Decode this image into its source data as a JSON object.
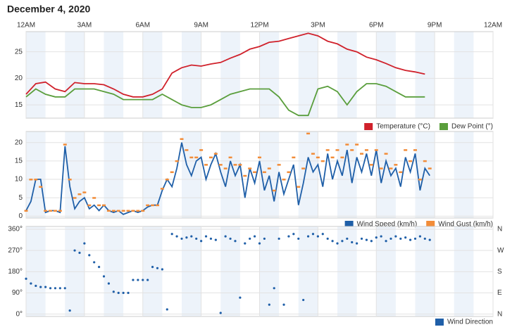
{
  "chart_data": [
    {
      "type": "line",
      "title": "December 4, 2020",
      "xlim": [
        0,
        24
      ],
      "xticks": [
        {
          "value": 0,
          "label": "12AM"
        },
        {
          "value": 3,
          "label": "3AM"
        },
        {
          "value": 6,
          "label": "6AM"
        },
        {
          "value": 9,
          "label": "9AM"
        },
        {
          "value": 12,
          "label": "12PM"
        },
        {
          "value": 15,
          "label": "3PM"
        },
        {
          "value": 18,
          "label": "6PM"
        },
        {
          "value": 21,
          "label": "9PM"
        },
        {
          "value": 24,
          "label": "12AM"
        }
      ],
      "ylim": [
        12.5,
        28.8
      ],
      "yticks": [
        15,
        20,
        25
      ],
      "x": [
        0,
        0.5,
        1,
        1.5,
        2,
        2.5,
        3,
        3.5,
        4,
        4.5,
        5,
        5.5,
        6,
        6.5,
        7,
        7.5,
        8,
        8.5,
        9,
        9.5,
        10,
        10.5,
        11,
        11.5,
        12,
        12.5,
        13,
        13.5,
        14,
        14.5,
        15,
        15.5,
        16,
        16.5,
        17,
        17.5,
        18,
        18.5,
        19,
        19.5,
        20,
        20.5
      ],
      "series": [
        {
          "name": "Temperature (°C)",
          "color": "#d0212b",
          "values": [
            17,
            19,
            19.3,
            18,
            17.5,
            19.2,
            19,
            19,
            18.8,
            18,
            17,
            16.5,
            16.5,
            17,
            18,
            21,
            22,
            22.5,
            22.3,
            22.7,
            23,
            23.8,
            24.5,
            25.5,
            26,
            26.8,
            27,
            27.5,
            28,
            28.5,
            28,
            27,
            26.5,
            25.5,
            25,
            24,
            23.5,
            22.8,
            22,
            21.5,
            21.2,
            20.8
          ]
        },
        {
          "name": "Dew Point (°)",
          "color": "#5a9e3c",
          "values": [
            16.5,
            18,
            17,
            16.5,
            16.5,
            18,
            18,
            18,
            17.5,
            17,
            16,
            16,
            16,
            16,
            17,
            16,
            15,
            14.5,
            14.5,
            15,
            16,
            17,
            17.5,
            18,
            18,
            18,
            16.5,
            14,
            13,
            13,
            18,
            18.5,
            17.5,
            15,
            17.5,
            19,
            19,
            18.5,
            17.5,
            16.5,
            16.5,
            16.5
          ]
        }
      ]
    },
    {
      "type": "line",
      "ylim": [
        -0.5,
        23
      ],
      "yticks": [
        0,
        5,
        10,
        15,
        20
      ],
      "x": [
        0,
        0.25,
        0.5,
        0.75,
        1,
        1.25,
        1.5,
        1.75,
        2,
        2.25,
        2.5,
        2.75,
        3,
        3.25,
        3.5,
        3.75,
        4,
        4.25,
        4.5,
        4.75,
        5,
        5.25,
        5.5,
        5.75,
        6,
        6.25,
        6.5,
        6.75,
        7,
        7.25,
        7.5,
        7.75,
        8,
        8.25,
        8.5,
        8.75,
        9,
        9.25,
        9.5,
        9.75,
        10,
        10.25,
        10.5,
        10.75,
        11,
        11.25,
        11.5,
        11.75,
        12,
        12.25,
        12.5,
        12.75,
        13,
        13.25,
        13.5,
        13.75,
        14,
        14.25,
        14.5,
        14.75,
        15,
        15.25,
        15.5,
        15.75,
        16,
        16.25,
        16.5,
        16.75,
        17,
        17.25,
        17.5,
        17.75,
        18,
        18.25,
        18.5,
        18.75,
        19,
        19.25,
        19.5,
        19.75,
        20,
        20.25,
        20.5,
        20.75
      ],
      "series": [
        {
          "name": "Wind Speed (km/h)",
          "color": "#1f5fa8",
          "values": [
            1.5,
            4,
            10,
            10,
            1,
            1.5,
            1.5,
            1,
            19,
            8,
            2,
            4,
            5,
            2,
            3,
            1.5,
            3,
            1.5,
            1,
            1.5,
            0.5,
            1,
            1.5,
            1,
            1.5,
            2.5,
            3,
            3,
            7,
            10,
            8,
            13,
            20,
            14,
            11,
            15,
            16,
            10,
            14,
            17,
            12,
            8,
            15,
            11,
            14,
            5,
            13,
            9,
            15,
            7,
            11,
            4,
            12,
            6,
            10,
            14,
            3,
            9,
            16,
            12,
            14,
            8,
            17,
            10,
            15,
            11,
            18,
            9,
            16,
            12,
            17,
            11,
            18,
            9,
            15,
            11,
            13,
            8,
            16,
            12,
            17,
            7,
            13,
            11
          ]
        },
        {
          "name": "Wind Gust (km/h)",
          "color": "#f28c38",
          "mode": "markers",
          "values": [
            1.5,
            10,
            10,
            8,
            1.5,
            1.5,
            1.5,
            1.5,
            19.5,
            10,
            5,
            6,
            6.5,
            3,
            5,
            3,
            3,
            1.5,
            1.5,
            1.5,
            1.5,
            1.5,
            1.5,
            1.5,
            1.5,
            3,
            3,
            3,
            7.5,
            10,
            12,
            15,
            21,
            18,
            16,
            16,
            18,
            14,
            16,
            17,
            14,
            13,
            16,
            14,
            14,
            11,
            13,
            12,
            16,
            12,
            13,
            7,
            14,
            10,
            12,
            16,
            8,
            13,
            22.5,
            17,
            16,
            15,
            18,
            16,
            18,
            16,
            19.5,
            18,
            19.5,
            17,
            18,
            14,
            18,
            13,
            17,
            13,
            14,
            12,
            18,
            15,
            18,
            10,
            15,
            13
          ]
        }
      ]
    },
    {
      "type": "scatter",
      "ylim": [
        -10,
        372
      ],
      "yticks": [
        {
          "value": 0,
          "label": "0°"
        },
        {
          "value": 90,
          "label": "90°"
        },
        {
          "value": 180,
          "label": "180°"
        },
        {
          "value": 270,
          "label": "270°"
        },
        {
          "value": 360,
          "label": "360°"
        }
      ],
      "y2lim": [
        -10,
        372
      ],
      "y2ticks": [
        {
          "value": 0,
          "label": "N"
        },
        {
          "value": 90,
          "label": "E"
        },
        {
          "value": 180,
          "label": "S"
        },
        {
          "value": 270,
          "label": "W"
        },
        {
          "value": 360,
          "label": "N"
        }
      ],
      "x": [
        0,
        0.25,
        0.5,
        0.75,
        1,
        1.25,
        1.5,
        1.75,
        2,
        2.25,
        2.5,
        2.75,
        3,
        3.25,
        3.5,
        3.75,
        4,
        4.25,
        4.5,
        4.75,
        5,
        5.25,
        5.5,
        5.75,
        6,
        6.25,
        6.5,
        6.75,
        7,
        7.25,
        7.5,
        7.75,
        8,
        8.25,
        8.5,
        8.75,
        9,
        9.25,
        9.5,
        9.75,
        10,
        10.25,
        10.5,
        10.75,
        11,
        11.25,
        11.5,
        11.75,
        12,
        12.25,
        12.5,
        12.75,
        13,
        13.25,
        13.5,
        13.75,
        14,
        14.25,
        14.5,
        14.75,
        15,
        15.25,
        15.5,
        15.75,
        16,
        16.25,
        16.5,
        16.75,
        17,
        17.25,
        17.5,
        17.75,
        18,
        18.25,
        18.5,
        18.75,
        19,
        19.25,
        19.5,
        19.75,
        20,
        20.25,
        20.5,
        20.75
      ],
      "series": [
        {
          "name": "Wind Direction",
          "color": "#1f5fa8",
          "values": [
            150,
            130,
            120,
            115,
            115,
            110,
            110,
            110,
            110,
            15,
            270,
            260,
            300,
            250,
            220,
            200,
            160,
            130,
            95,
            90,
            90,
            90,
            145,
            145,
            145,
            145,
            200,
            195,
            190,
            20,
            340,
            330,
            320,
            325,
            330,
            320,
            310,
            330,
            320,
            315,
            5,
            330,
            320,
            310,
            70,
            300,
            320,
            330,
            300,
            320,
            40,
            110,
            320,
            40,
            330,
            340,
            320,
            60,
            330,
            340,
            330,
            340,
            320,
            310,
            300,
            310,
            320,
            305,
            300,
            320,
            315,
            310,
            325,
            330,
            310,
            320,
            330,
            320,
            325,
            315,
            320,
            330,
            320,
            315
          ]
        }
      ]
    }
  ]
}
